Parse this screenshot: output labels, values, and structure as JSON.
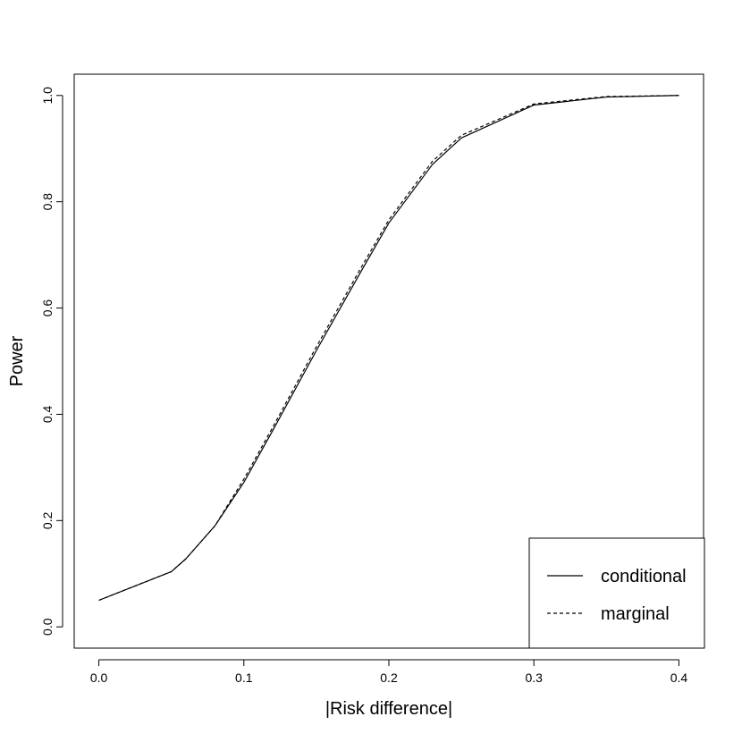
{
  "chart_data": {
    "type": "line",
    "title": "",
    "xlabel": "|Risk difference|",
    "ylabel": "Power",
    "xlim": [
      -0.017,
      0.417
    ],
    "ylim": [
      -0.04,
      1.04
    ],
    "xticks": [
      0.0,
      0.1,
      0.2,
      0.3,
      0.4
    ],
    "xtick_labels": [
      "0.0",
      "0.1",
      "0.2",
      "0.3",
      "0.4"
    ],
    "yticks": [
      0.0,
      0.2,
      0.4,
      0.6,
      0.8,
      1.0
    ],
    "ytick_labels": [
      "0.0",
      "0.2",
      "0.4",
      "0.6",
      "0.8",
      "1.0"
    ],
    "grid": false,
    "legend_position": "bottom-right",
    "series": [
      {
        "name": "conditional",
        "line_style": "solid",
        "color": "#000000",
        "x": [
          0.0,
          0.05,
          0.06,
          0.08,
          0.1,
          0.12,
          0.15,
          0.18,
          0.2,
          0.23,
          0.25,
          0.3,
          0.35,
          0.4
        ],
        "y": [
          0.05,
          0.104,
          0.128,
          0.19,
          0.272,
          0.37,
          0.52,
          0.665,
          0.76,
          0.87,
          0.92,
          0.982,
          0.997,
          1.0
        ]
      },
      {
        "name": "marginal",
        "line_style": "dashed",
        "color": "#000000",
        "x": [
          0.0,
          0.05,
          0.06,
          0.08,
          0.1,
          0.12,
          0.15,
          0.18,
          0.2,
          0.23,
          0.25,
          0.3,
          0.35,
          0.4
        ],
        "y": [
          0.05,
          0.104,
          0.128,
          0.19,
          0.278,
          0.376,
          0.527,
          0.672,
          0.766,
          0.876,
          0.925,
          0.984,
          0.998,
          1.0
        ]
      }
    ]
  }
}
